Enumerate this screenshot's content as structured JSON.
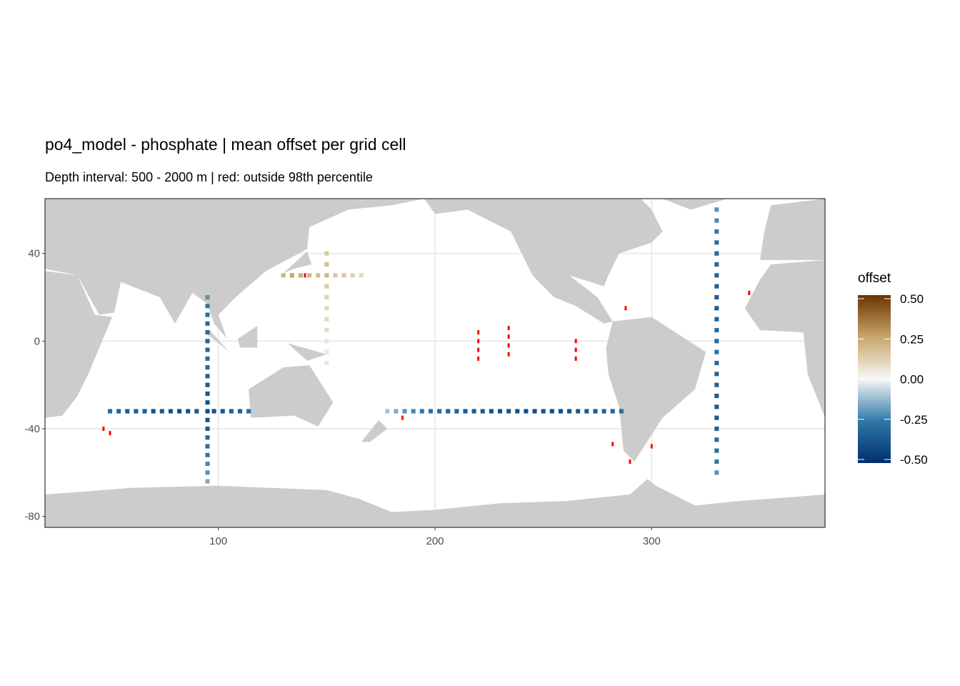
{
  "chart_data": {
    "type": "gridmap",
    "title": "po4_model - phosphate  | mean offset per grid cell",
    "subtitle": "Depth interval: 500 - 2000 m | red: outside 98th percentile",
    "legend_title": "offset",
    "xlim": [
      20,
      380
    ],
    "ylim": [
      -85,
      65
    ],
    "xticks": [
      100,
      200,
      300
    ],
    "yticks": [
      40,
      0,
      -40,
      -80
    ],
    "grid": true,
    "land_color": "#cccccc",
    "outlier_color": "#ff0000",
    "colors": [
      "#002f6c",
      "#2f79a8",
      "#f7f7f7",
      "#c8a66a",
      "#6b3300"
    ],
    "clim": [
      -0.5,
      0.5
    ],
    "legend_ticks": [
      {
        "value": 0.5,
        "label": "0.50"
      },
      0.25,
      {
        "value": 0,
        "label": "0.00"
      },
      -0.25,
      {
        "value": -0.5,
        "label": "-0.50"
      }
    ],
    "cells": [
      [
        95,
        20,
        -0.2
      ],
      [
        95,
        16,
        -0.25
      ],
      [
        95,
        12,
        -0.28
      ],
      [
        95,
        8,
        -0.3
      ],
      [
        95,
        4,
        -0.3
      ],
      [
        95,
        0,
        -0.32
      ],
      [
        95,
        -4,
        -0.3
      ],
      [
        95,
        -8,
        -0.28
      ],
      [
        95,
        -12,
        -0.3
      ],
      [
        95,
        -16,
        -0.33
      ],
      [
        95,
        -20,
        -0.35
      ],
      [
        95,
        -24,
        -0.35
      ],
      [
        95,
        -28,
        -0.38
      ],
      [
        95,
        -32,
        -0.4
      ],
      [
        95,
        -36,
        -0.38
      ],
      [
        95,
        -40,
        -0.35
      ],
      [
        95,
        -44,
        -0.3
      ],
      [
        95,
        -48,
        -0.28
      ],
      [
        95,
        -52,
        -0.25
      ],
      [
        95,
        -56,
        -0.22
      ],
      [
        95,
        -60,
        -0.2
      ],
      [
        95,
        -64,
        -0.15
      ],
      [
        50,
        -32,
        -0.3
      ],
      [
        54,
        -32,
        -0.32
      ],
      [
        58,
        -32,
        -0.35
      ],
      [
        62,
        -32,
        -0.33
      ],
      [
        66,
        -32,
        -0.35
      ],
      [
        70,
        -32,
        -0.38
      ],
      [
        74,
        -32,
        -0.36
      ],
      [
        78,
        -32,
        -0.38
      ],
      [
        82,
        -32,
        -0.4
      ],
      [
        86,
        -32,
        -0.38
      ],
      [
        90,
        -32,
        -0.36
      ],
      [
        98,
        -32,
        -0.38
      ],
      [
        102,
        -32,
        -0.36
      ],
      [
        106,
        -32,
        -0.34
      ],
      [
        110,
        -32,
        -0.33
      ],
      [
        114,
        -32,
        -0.3
      ],
      [
        178,
        -32,
        -0.1
      ],
      [
        182,
        -32,
        -0.15
      ],
      [
        186,
        -32,
        -0.2
      ],
      [
        190,
        -32,
        -0.22
      ],
      [
        194,
        -32,
        -0.25
      ],
      [
        198,
        -32,
        -0.28
      ],
      [
        202,
        -32,
        -0.3
      ],
      [
        206,
        -32,
        -0.32
      ],
      [
        210,
        -32,
        -0.33
      ],
      [
        214,
        -32,
        -0.35
      ],
      [
        218,
        -32,
        -0.35
      ],
      [
        222,
        -32,
        -0.36
      ],
      [
        226,
        -32,
        -0.38
      ],
      [
        230,
        -32,
        -0.38
      ],
      [
        234,
        -32,
        -0.37
      ],
      [
        238,
        -32,
        -0.38
      ],
      [
        242,
        -32,
        -0.4
      ],
      [
        246,
        -32,
        -0.4
      ],
      [
        250,
        -32,
        -0.38
      ],
      [
        254,
        -32,
        -0.4
      ],
      [
        258,
        -32,
        -0.4
      ],
      [
        262,
        -32,
        -0.38
      ],
      [
        266,
        -32,
        -0.37
      ],
      [
        270,
        -32,
        -0.36
      ],
      [
        274,
        -32,
        -0.35
      ],
      [
        278,
        -32,
        -0.33
      ],
      [
        282,
        -32,
        -0.32
      ],
      [
        286,
        -32,
        -0.3
      ],
      [
        130,
        30,
        0.2
      ],
      [
        134,
        30,
        0.25
      ],
      [
        138,
        30,
        0.22
      ],
      [
        142,
        30,
        0.2
      ],
      [
        146,
        30,
        0.18
      ],
      [
        150,
        30,
        0.2
      ],
      [
        154,
        30,
        0.15
      ],
      [
        158,
        30,
        0.15
      ],
      [
        162,
        30,
        0.12
      ],
      [
        166,
        30,
        0.1
      ],
      [
        150,
        40,
        0.15
      ],
      [
        150,
        35,
        0.18
      ],
      [
        150,
        25,
        0.15
      ],
      [
        150,
        20,
        0.12
      ],
      [
        150,
        15,
        0.1
      ],
      [
        150,
        10,
        0.1
      ],
      [
        150,
        5,
        0.08
      ],
      [
        150,
        0,
        0.06
      ],
      [
        150,
        -5,
        0.05
      ],
      [
        150,
        -10,
        0.05
      ],
      [
        330,
        60,
        -0.2
      ],
      [
        330,
        55,
        -0.22
      ],
      [
        330,
        50,
        -0.25
      ],
      [
        330,
        45,
        -0.28
      ],
      [
        330,
        40,
        -0.3
      ],
      [
        330,
        35,
        -0.3
      ],
      [
        330,
        30,
        -0.32
      ],
      [
        330,
        25,
        -0.33
      ],
      [
        330,
        20,
        -0.35
      ],
      [
        330,
        15,
        -0.35
      ],
      [
        330,
        10,
        -0.33
      ],
      [
        330,
        5,
        -0.3
      ],
      [
        330,
        0,
        -0.3
      ],
      [
        330,
        -5,
        -0.28
      ],
      [
        330,
        -10,
        -0.3
      ],
      [
        330,
        -15,
        -0.32
      ],
      [
        330,
        -20,
        -0.33
      ],
      [
        330,
        -25,
        -0.35
      ],
      [
        330,
        -30,
        -0.36
      ],
      [
        330,
        -35,
        -0.35
      ],
      [
        330,
        -40,
        -0.33
      ],
      [
        330,
        -45,
        -0.3
      ],
      [
        330,
        -50,
        -0.28
      ],
      [
        330,
        -55,
        -0.25
      ],
      [
        330,
        -60,
        -0.2
      ]
    ],
    "outliers": [
      [
        220,
        4
      ],
      [
        220,
        0
      ],
      [
        220,
        -4
      ],
      [
        220,
        -8
      ],
      [
        234,
        6
      ],
      [
        234,
        2
      ],
      [
        234,
        -2
      ],
      [
        234,
        -6
      ],
      [
        265,
        0
      ],
      [
        265,
        -4
      ],
      [
        265,
        -8
      ],
      [
        50,
        -42
      ],
      [
        47,
        -40
      ],
      [
        282,
        -47
      ],
      [
        290,
        -55
      ],
      [
        300,
        -48
      ],
      [
        288,
        15
      ],
      [
        345,
        22
      ],
      [
        140,
        30
      ],
      [
        185,
        -35
      ]
    ]
  }
}
